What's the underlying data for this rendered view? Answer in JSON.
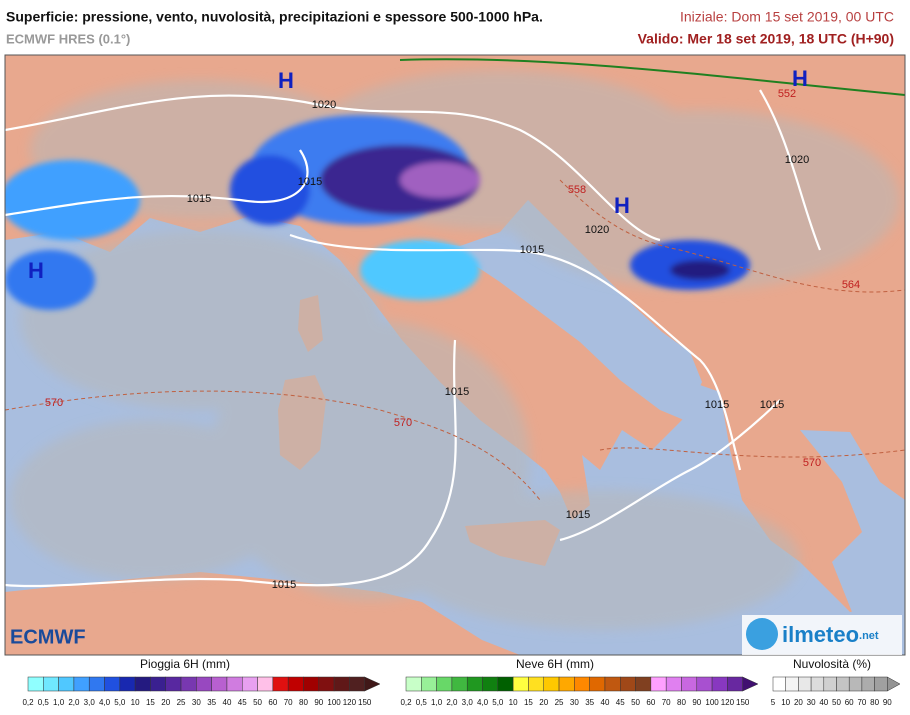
{
  "header": {
    "title": "Superficie: pressione, vento, nuvolosità, precipitazioni e spessore 500-1000 hPa.",
    "model": "ECMWF HRES (0.1°)",
    "init": "Iniziale: Dom 15 set 2019, 00 UTC",
    "valid": "Valido: Mer 18 set 2019, 18 UTC (H+90)"
  },
  "map": {
    "pressure_centers": [
      "H",
      "H",
      "H",
      "H"
    ],
    "isobar_labels": [
      "1020",
      "1015",
      "1015",
      "1020",
      "1015",
      "1020",
      "1015",
      "1015",
      "1015",
      "1015",
      "1015"
    ],
    "thickness_labels": [
      "570",
      "570",
      "570",
      "558",
      "552",
      "564"
    ]
  },
  "logos": {
    "left": "ECMWF",
    "right": "ilmeteo",
    "right_suffix": ".net"
  },
  "legend": [
    {
      "title": "Pioggia 6H (mm)",
      "ticks": [
        "0,2",
        "0,5",
        "1,0",
        "2,0",
        "3,0",
        "4,0",
        "5,0",
        "10",
        "15",
        "20",
        "25",
        "30",
        "35",
        "40",
        "45",
        "50",
        "60",
        "70",
        "80",
        "90",
        "100",
        "120",
        "150"
      ],
      "colors": [
        "#90ffff",
        "#70e8ff",
        "#50c8ff",
        "#40a0ff",
        "#3078f0",
        "#2050e0",
        "#1828b0",
        "#241a80",
        "#3a2090",
        "#5828a0",
        "#7838b0",
        "#9848c0",
        "#b860d0",
        "#d07ce0",
        "#e8a0f0",
        "#ffc0e8",
        "#e01010",
        "#c00000",
        "#a00000",
        "#801010",
        "#601818",
        "#502020",
        "#401818"
      ]
    },
    {
      "title": "Neve 6H (mm)",
      "ticks": [
        "0,2",
        "0,5",
        "1,0",
        "2,0",
        "3,0",
        "4,0",
        "5,0",
        "10",
        "15",
        "20",
        "25",
        "30",
        "35",
        "40",
        "45",
        "50",
        "60",
        "70",
        "80",
        "90",
        "100",
        "120",
        "150"
      ],
      "colors": [
        "#c8ffc8",
        "#98f098",
        "#68d868",
        "#40b840",
        "#209820",
        "#108010",
        "#006000",
        "#ffff40",
        "#ffe020",
        "#ffc800",
        "#ffa800",
        "#ff8800",
        "#e06800",
        "#c05810",
        "#a04818",
        "#804020",
        "#ffa0ff",
        "#e080f0",
        "#c868e0",
        "#a850d0",
        "#8838c0",
        "#6828a0",
        "#401070"
      ]
    },
    {
      "title": "Nuvolosità (%)",
      "ticks": [
        "5",
        "10",
        "20",
        "30",
        "40",
        "50",
        "60",
        "70",
        "80",
        "90"
      ],
      "colors": [
        "#ffffff",
        "#f4f4f4",
        "#e8e8e8",
        "#dcdcdc",
        "#d0d0d0",
        "#c4c4c4",
        "#b8b8b8",
        "#acacac",
        "#a0a0a0",
        "#949494"
      ]
    }
  ]
}
